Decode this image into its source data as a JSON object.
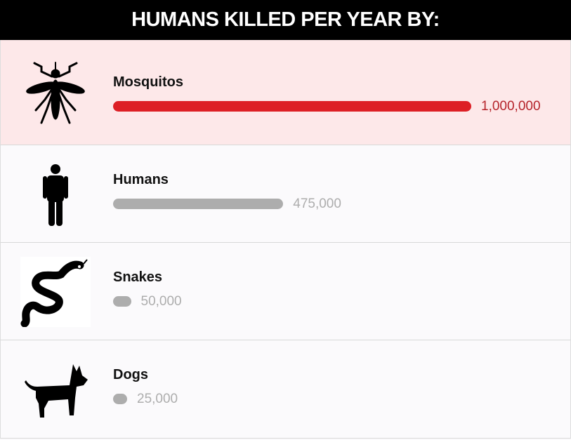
{
  "chart_data": {
    "type": "bar",
    "title": "HUMANS KILLED PER YEAR BY:",
    "categories": [
      "Mosquitos",
      "Humans",
      "Snakes",
      "Dogs"
    ],
    "values": [
      1000000,
      475000,
      50000,
      25000
    ],
    "value_labels": [
      "1,000,000",
      "475,000",
      "50,000",
      "25,000"
    ],
    "icons": [
      "mosquito-icon",
      "human-icon",
      "snake-icon",
      "dog-icon"
    ],
    "highlight_color": "#dd1f25",
    "bar_color": "#adadad",
    "highlight_background": "#fde8e9",
    "orientation": "horizontal",
    "grid": false
  }
}
